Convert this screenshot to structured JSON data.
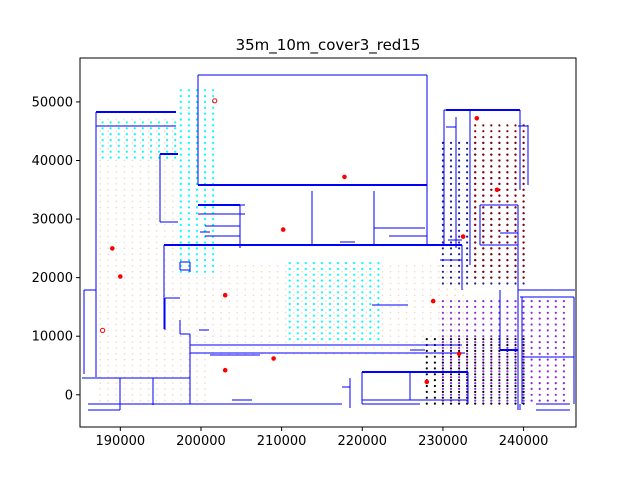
{
  "chart_data": {
    "type": "scatter",
    "title": "35m_10m_cover3_red15",
    "xlabel": "",
    "ylabel": "",
    "xlim": [
      185000,
      246500
    ],
    "ylim": [
      -5500,
      57500
    ],
    "grid": false,
    "x_ticks": [
      190000,
      200000,
      210000,
      220000,
      230000,
      240000
    ],
    "y_ticks": [
      0,
      10000,
      20000,
      30000,
      40000,
      50000
    ],
    "x_tick_labels": [
      "190000",
      "200000",
      "210000",
      "220000",
      "230000",
      "240000"
    ],
    "y_tick_labels": [
      "0",
      "10000",
      "20000",
      "30000",
      "40000",
      "50000"
    ],
    "colors": {
      "walls": "#0000ff",
      "cover_light": "#f5dccb",
      "cover_cyan": "#00ffff",
      "cover_navy": "#1a1aa0",
      "cover_darkred": "#8b0000",
      "cover_purple": "#8a2be2",
      "cover_black": "#000000",
      "selected": "#ff0000"
    },
    "selected_points": [
      {
        "x": 189000,
        "y": 25000
      },
      {
        "x": 190000,
        "y": 20200
      },
      {
        "x": 203000,
        "y": 17000
      },
      {
        "x": 203000,
        "y": 4200
      },
      {
        "x": 209000,
        "y": 6200
      },
      {
        "x": 210200,
        "y": 28200
      },
      {
        "x": 217800,
        "y": 37200
      },
      {
        "x": 228000,
        "y": 2200
      },
      {
        "x": 228800,
        "y": 16000
      },
      {
        "x": 232000,
        "y": 7000
      },
      {
        "x": 232500,
        "y": 27000
      },
      {
        "x": 234200,
        "y": 47200
      },
      {
        "x": 236700,
        "y": 35000
      }
    ],
    "open_points": [
      {
        "x": 201700,
        "y": 50200
      },
      {
        "x": 187800,
        "y": 11000
      }
    ],
    "point_clusters": [
      {
        "color": "cover_light",
        "x": [
          187500,
          200500
        ],
        "y": [
          -1000,
          47000
        ],
        "step": 1000
      },
      {
        "color": "cover_light",
        "x": [
          200500,
          232500
        ],
        "y": [
          7000,
          22000
        ],
        "step": 1000
      },
      {
        "color": "cover_cyan",
        "x": [
          187800,
          197500
        ],
        "y": [
          40500,
          47000
        ],
        "step": 1000
      },
      {
        "color": "cover_cyan",
        "x": [
          197500,
          201500
        ],
        "y": [
          21000,
          52000
        ],
        "step": 1000
      },
      {
        "color": "cover_cyan",
        "x": [
          211000,
          222000
        ],
        "y": [
          9500,
          23000
        ],
        "step": 1000
      },
      {
        "color": "cover_navy",
        "x": [
          230000,
          240000
        ],
        "y": [
          19000,
          43000
        ],
        "step": 1000
      },
      {
        "color": "cover_darkred",
        "x": [
          234000,
          240000
        ],
        "y": [
          20000,
          46000
        ],
        "step": 1000
      },
      {
        "color": "cover_purple",
        "x": [
          230000,
          245500
        ],
        "y": [
          -1000,
          16000
        ],
        "step": 1000
      },
      {
        "color": "cover_black",
        "x": [
          228000,
          240000
        ],
        "y": [
          -1500,
          10000
        ],
        "step": 1000
      }
    ]
  }
}
